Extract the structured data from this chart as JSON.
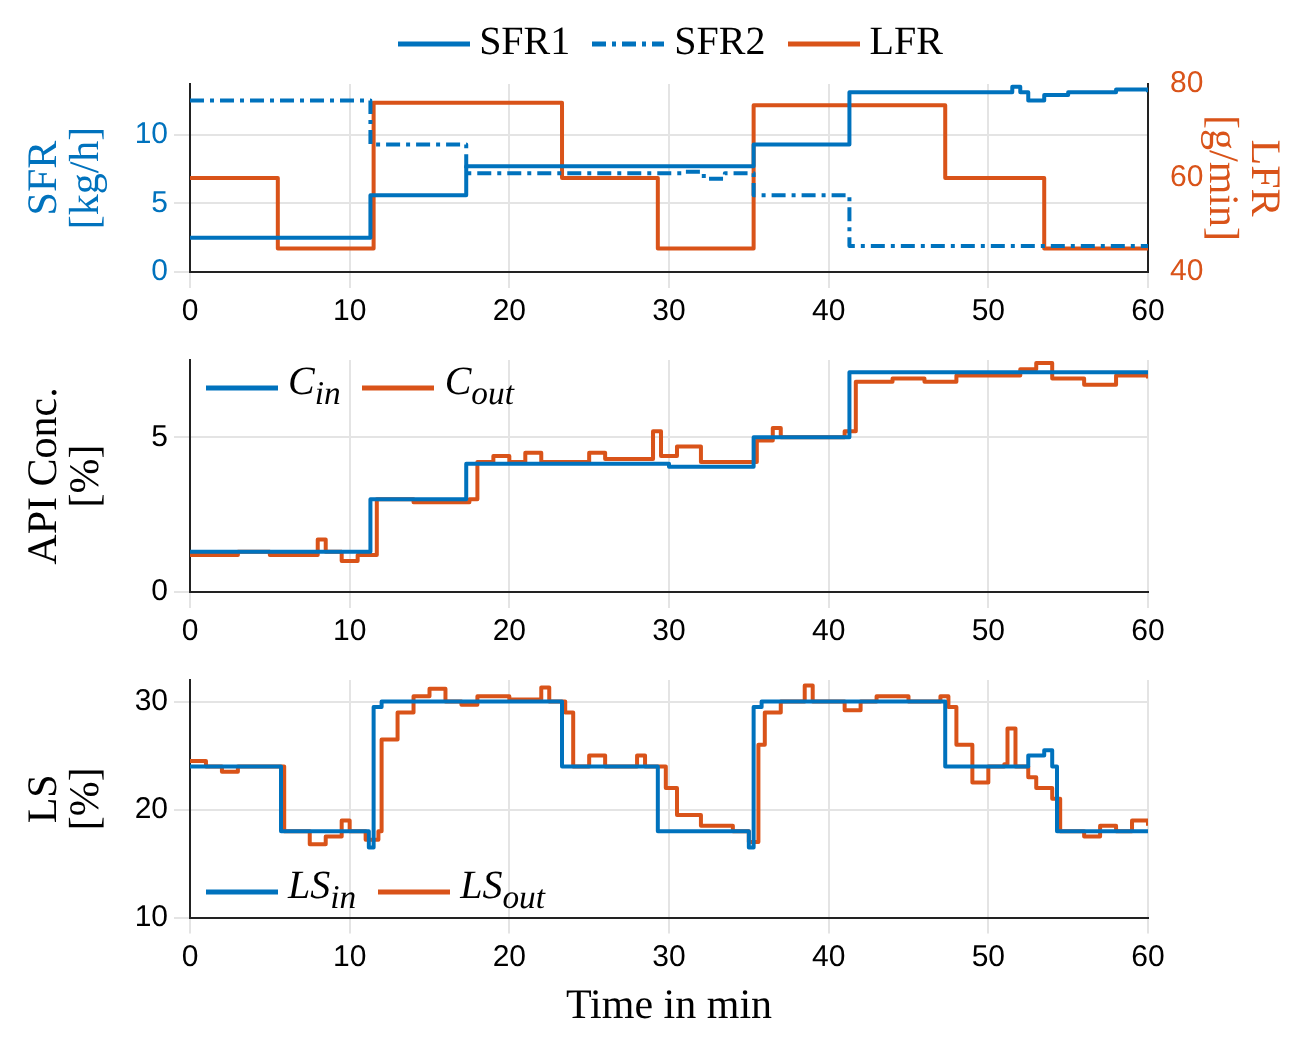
{
  "chart_data": [
    {
      "type": "step",
      "ylabel": "SFR [kg/h]",
      "y2label": "LFR [g/min]",
      "xlim": [
        0,
        60
      ],
      "xticks": [
        0,
        10,
        20,
        30,
        40,
        50,
        60
      ],
      "ylim": [
        0,
        13.7
      ],
      "yticks": [
        0,
        5,
        10
      ],
      "y2lim": [
        40,
        80
      ],
      "y2ticks": [
        40,
        60,
        80
      ],
      "grid": true,
      "legend": "top",
      "marker": "none",
      "series": [
        {
          "name": "SFR1",
          "color": "#0072bd",
          "line_style": "solid",
          "x": [
            0,
            11.3,
            17.3,
            35.3,
            41.3,
            51.5,
            52,
            52.5,
            53.5,
            55,
            58,
            60
          ],
          "values": [
            2.5,
            5.6,
            7.7,
            9.3,
            13.1,
            13.5,
            13.1,
            12.5,
            12.9,
            13.1,
            13.3,
            13.1
          ]
        },
        {
          "name": "SFR2",
          "color": "#0072bd",
          "line_style": "dashed",
          "x": [
            0,
            11.3,
            17.3,
            31,
            32,
            32.5,
            33.5,
            35.3,
            41.3,
            60
          ],
          "values": [
            12.5,
            9.3,
            7.2,
            7.3,
            7.0,
            6.8,
            7.2,
            5.6,
            1.9,
            1.9
          ]
        },
        {
          "name": "LFR",
          "color": "#d95319",
          "axis": "y2",
          "line_style": "solid",
          "x": [
            0,
            5.5,
            11.5,
            23.3,
            29.3,
            35.3,
            47.3,
            53.5,
            60
          ],
          "values": [
            60,
            45,
            76,
            60,
            45,
            75.5,
            60,
            45,
            45
          ]
        }
      ]
    },
    {
      "type": "step",
      "ylabel": "API Conc. [%]",
      "xlim": [
        0,
        60
      ],
      "xticks": [
        0,
        10,
        20,
        30,
        40,
        50,
        60
      ],
      "ylim": [
        0,
        7.5
      ],
      "yticks": [
        0,
        5
      ],
      "grid": true,
      "legend": "top left",
      "marker": "none",
      "series": [
        {
          "name": "C$_{in}$",
          "color": "#0072bd",
          "x": [
            0,
            11.3,
            17.3,
            30,
            35.3,
            41.3,
            60
          ],
          "values": [
            1.3,
            3.0,
            4.15,
            4.05,
            5.0,
            7.1,
            7.1
          ]
        },
        {
          "name": "C$_{out}$",
          "color": "#d95319",
          "x": [
            0,
            3,
            5,
            8,
            8.5,
            9.5,
            10.5,
            11.7,
            14,
            17.5,
            18,
            19,
            20,
            21,
            22,
            25,
            26,
            29,
            29.5,
            30.5,
            32,
            34,
            35.5,
            36.5,
            37,
            40,
            41,
            41.7,
            44,
            46,
            48,
            50,
            52,
            53,
            54,
            56,
            58,
            60
          ],
          "values": [
            1.2,
            1.3,
            1.2,
            1.7,
            1.3,
            1.0,
            1.2,
            3.0,
            2.9,
            3.0,
            4.2,
            4.4,
            4.2,
            4.5,
            4.2,
            4.5,
            4.3,
            5.2,
            4.4,
            4.7,
            4.2,
            4.2,
            4.9,
            5.3,
            5.0,
            5.0,
            5.2,
            6.8,
            6.9,
            6.8,
            7.0,
            7.0,
            7.2,
            7.4,
            6.9,
            6.7,
            7.0,
            6.9
          ]
        }
      ]
    },
    {
      "type": "step",
      "ylabel": "LS [%]",
      "xlabel": "Time in min",
      "xlim": [
        0,
        60
      ],
      "xticks": [
        0,
        10,
        20,
        30,
        40,
        50,
        60
      ],
      "ylim": [
        10,
        32
      ],
      "yticks": [
        10,
        20,
        30
      ],
      "grid": true,
      "legend": "bottom left",
      "marker": "none",
      "series": [
        {
          "name": "LS$_{in}$",
          "color": "#0072bd",
          "x": [
            0,
            5.7,
            11.2,
            11.5,
            12,
            23.3,
            29.3,
            35,
            35.3,
            35.8,
            47.3,
            52,
            52.5,
            53.5,
            54,
            54.3,
            60
          ],
          "values": [
            24,
            18,
            16.5,
            29.5,
            30,
            24,
            18,
            16.5,
            29.5,
            30,
            24,
            24,
            25,
            25.5,
            24,
            18,
            18
          ]
        },
        {
          "name": "LS$_{out}$",
          "color": "#d95319",
          "x": [
            0,
            1,
            2,
            3,
            5,
            5.9,
            7.5,
            8.5,
            9.5,
            10,
            11,
            11.8,
            12,
            13,
            14,
            15,
            16,
            17,
            18,
            20,
            22,
            22.5,
            23.5,
            24,
            25,
            26,
            27,
            28,
            28.5,
            29.8,
            30.5,
            32,
            34,
            35,
            35.6,
            36,
            37,
            38.5,
            39,
            41,
            42,
            43,
            45,
            47,
            47.5,
            48,
            49,
            50,
            51,
            51.2,
            51.7,
            52.5,
            53,
            54,
            54.5,
            56,
            57,
            58,
            59,
            60
          ],
          "values": [
            24.5,
            24,
            23.5,
            24,
            24,
            18,
            16.8,
            17.5,
            19,
            18,
            17.2,
            18,
            26.5,
            29,
            30.5,
            31.2,
            30,
            29.7,
            30.5,
            30.2,
            31.3,
            30,
            29,
            24,
            25,
            24,
            24,
            25,
            24,
            22,
            19.5,
            18.5,
            18,
            17,
            26,
            29,
            30,
            31.5,
            30,
            29.2,
            30,
            30.5,
            30,
            30.5,
            29.5,
            26,
            22.5,
            24,
            24.2,
            27.5,
            24,
            23,
            22,
            21,
            18,
            17.5,
            18.5,
            18,
            19,
            18.5
          ]
        }
      ]
    }
  ]
}
